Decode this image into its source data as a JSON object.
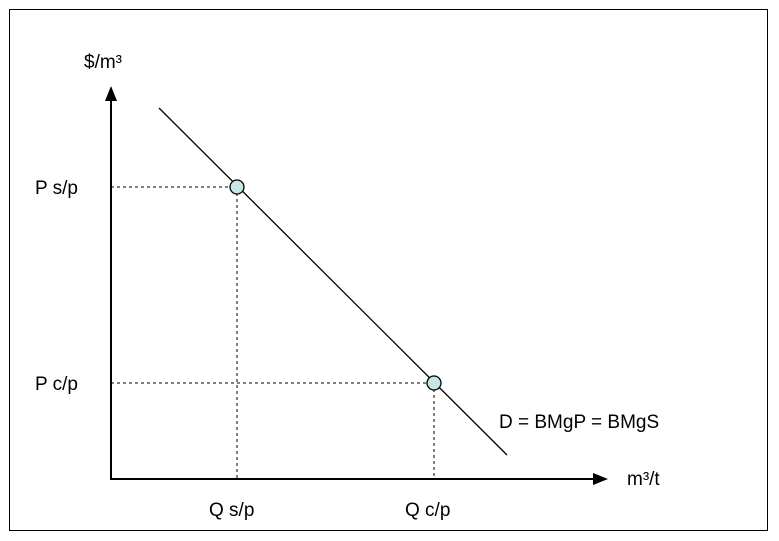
{
  "axes": {
    "y_label": "$/m³",
    "x_label": "m³/t"
  },
  "curve": {
    "label": "D = BMgP = BMgS"
  },
  "points": [
    {
      "price_label": "P s/p",
      "quantity_label": "Q s/p"
    },
    {
      "price_label": "P c/p",
      "quantity_label": "Q c/p"
    }
  ],
  "colors": {
    "line": "#000000",
    "point_fill": "#c6e6e6",
    "point_stroke": "#000000"
  }
}
